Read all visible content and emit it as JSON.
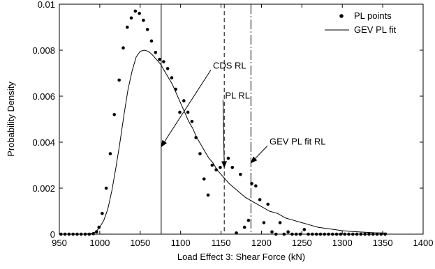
{
  "chart_data": {
    "type": "scatter",
    "xlabel": "Load Effect 3: Shear Force (kN)",
    "ylabel": "Probability Density",
    "xlim": [
      950,
      1400
    ],
    "ylim": [
      0,
      0.01
    ],
    "x_ticks": [
      950,
      1000,
      1050,
      1100,
      1150,
      1200,
      1250,
      1300,
      1350,
      1400
    ],
    "x_tick_labels": [
      "950",
      "1000",
      "1050",
      "1100",
      "1150",
      "1200",
      "1250",
      "1300",
      "1350",
      "1400"
    ],
    "y_ticks": [
      0,
      0.002,
      0.004,
      0.006,
      0.008,
      0.01
    ],
    "y_tick_labels": [
      "0",
      "0.002",
      "0.004",
      "0.006",
      "0.008",
      "0.01"
    ],
    "grid": false,
    "legend_position": "top-right",
    "series": [
      {
        "name": "PL points",
        "type": "scatter",
        "marker": "dot",
        "color": "#000000",
        "points": [
          [
            952,
            0
          ],
          [
            957,
            0
          ],
          [
            962,
            0
          ],
          [
            967,
            0
          ],
          [
            972,
            0
          ],
          [
            977,
            0
          ],
          [
            982,
            0
          ],
          [
            987,
            0
          ],
          [
            992,
            2e-05
          ],
          [
            996,
            0.0001
          ],
          [
            999,
            0.0003
          ],
          [
            1003,
            0.0009
          ],
          [
            1008,
            0.002
          ],
          [
            1013,
            0.0035
          ],
          [
            1018,
            0.0052
          ],
          [
            1024,
            0.0067
          ],
          [
            1029,
            0.0081
          ],
          [
            1034,
            0.009
          ],
          [
            1039,
            0.0094
          ],
          [
            1044,
            0.0097
          ],
          [
            1049,
            0.0096
          ],
          [
            1054,
            0.0093
          ],
          [
            1059,
            0.0089
          ],
          [
            1064,
            0.0084
          ],
          [
            1069,
            0.0079
          ],
          [
            1074,
            0.0076
          ],
          [
            1079,
            0.0075
          ],
          [
            1084,
            0.0072
          ],
          [
            1089,
            0.0068
          ],
          [
            1094,
            0.0063
          ],
          [
            1099,
            0.0053
          ],
          [
            1104,
            0.0058
          ],
          [
            1109,
            0.0053
          ],
          [
            1114,
            0.0049
          ],
          [
            1119,
            0.0042
          ],
          [
            1124,
            0.0035
          ],
          [
            1129,
            0.0024
          ],
          [
            1134,
            0.0017
          ],
          [
            1139,
            0.003
          ],
          [
            1144,
            0.0028
          ],
          [
            1149,
            0.0029
          ],
          [
            1154,
            0.0031
          ],
          [
            1159,
            0.0033
          ],
          [
            1164,
            0.0029
          ],
          [
            1169,
            5e-05
          ],
          [
            1174,
            0.0026
          ],
          [
            1179,
            0.0003
          ],
          [
            1184,
            0.0006
          ],
          [
            1188,
            0.0022
          ],
          [
            1193,
            0.0021
          ],
          [
            1198,
            0.0015
          ],
          [
            1203,
            0.0005
          ],
          [
            1208,
            0.0013
          ],
          [
            1213,
            0.0001
          ],
          [
            1218,
            0.0
          ],
          [
            1223,
            0.0005
          ],
          [
            1228,
            0.0
          ],
          [
            1233,
            0.0001
          ],
          [
            1238,
            0.0
          ],
          [
            1243,
            0.0
          ],
          [
            1248,
            0.0
          ],
          [
            1253,
            0.0002
          ],
          [
            1258,
            0.0
          ],
          [
            1263,
            0.0
          ],
          [
            1268,
            0.0
          ],
          [
            1273,
            0.0
          ],
          [
            1278,
            0.0
          ],
          [
            1283,
            0.0
          ],
          [
            1288,
            0.0
          ],
          [
            1293,
            0.0
          ],
          [
            1298,
            0.0
          ],
          [
            1303,
            0.0
          ],
          [
            1308,
            0.0
          ],
          [
            1313,
            0.0
          ],
          [
            1318,
            0.0
          ],
          [
            1323,
            0.0
          ],
          [
            1328,
            0.0
          ],
          [
            1333,
            0.0
          ],
          [
            1338,
            0.0
          ],
          [
            1343,
            0.0
          ],
          [
            1348,
            0.0
          ],
          [
            1353,
            0.0
          ]
        ]
      },
      {
        "name": "GEV PL fit",
        "type": "line",
        "line_style": "solid",
        "color": "#000000",
        "points": [
          [
            955,
            0
          ],
          [
            980,
            0
          ],
          [
            990,
            3e-05
          ],
          [
            995,
            0.0001
          ],
          [
            1000,
            0.0003
          ],
          [
            1005,
            0.0006
          ],
          [
            1010,
            0.0011
          ],
          [
            1015,
            0.0019
          ],
          [
            1020,
            0.0029
          ],
          [
            1025,
            0.004
          ],
          [
            1030,
            0.0052
          ],
          [
            1035,
            0.0063
          ],
          [
            1040,
            0.0071
          ],
          [
            1045,
            0.0077
          ],
          [
            1050,
            0.00795
          ],
          [
            1055,
            0.008
          ],
          [
            1060,
            0.00795
          ],
          [
            1065,
            0.0078
          ],
          [
            1070,
            0.0076
          ],
          [
            1075,
            0.0074
          ],
          [
            1080,
            0.0071
          ],
          [
            1085,
            0.0068
          ],
          [
            1090,
            0.0065
          ],
          [
            1095,
            0.0061
          ],
          [
            1100,
            0.0057
          ],
          [
            1105,
            0.0053
          ],
          [
            1110,
            0.0049
          ],
          [
            1115,
            0.0046
          ],
          [
            1120,
            0.0042
          ],
          [
            1125,
            0.0039
          ],
          [
            1130,
            0.0036
          ],
          [
            1135,
            0.0033
          ],
          [
            1140,
            0.0031
          ],
          [
            1145,
            0.0028
          ],
          [
            1150,
            0.0026
          ],
          [
            1155,
            0.0024
          ],
          [
            1160,
            0.0022
          ],
          [
            1170,
            0.0019
          ],
          [
            1180,
            0.0016
          ],
          [
            1190,
            0.0014
          ],
          [
            1200,
            0.0012
          ],
          [
            1210,
            0.001
          ],
          [
            1220,
            0.0009
          ],
          [
            1230,
            0.0007
          ],
          [
            1240,
            0.0006
          ],
          [
            1250,
            0.0005
          ],
          [
            1260,
            0.0004
          ],
          [
            1270,
            0.0003
          ],
          [
            1280,
            0.00025
          ],
          [
            1290,
            0.0002
          ],
          [
            1300,
            0.00015
          ],
          [
            1310,
            0.00012
          ],
          [
            1320,
            0.0001
          ],
          [
            1330,
            8e-05
          ],
          [
            1340,
            6e-05
          ],
          [
            1355,
            5e-05
          ]
        ]
      }
    ],
    "vertical_lines": [
      {
        "x": 1076,
        "style": "solid",
        "label": "CDS RL"
      },
      {
        "x": 1154,
        "style": "dashed",
        "label": "PL RL"
      },
      {
        "x": 1187,
        "style": "dashdot",
        "label": "GEV PL fit RL"
      }
    ],
    "annotations": [
      {
        "text": "CDS RL",
        "text_at": [
          1140,
          0.0072
        ],
        "arrow_to": [
          1076,
          0.0038
        ]
      },
      {
        "text": "PL RL",
        "text_at": [
          1155,
          0.0059
        ],
        "arrow_to": [
          1154,
          0.0029
        ]
      },
      {
        "text": "GEV PL fit RL",
        "text_at": [
          1210,
          0.0039
        ],
        "arrow_to": [
          1187,
          0.0031
        ]
      }
    ]
  }
}
